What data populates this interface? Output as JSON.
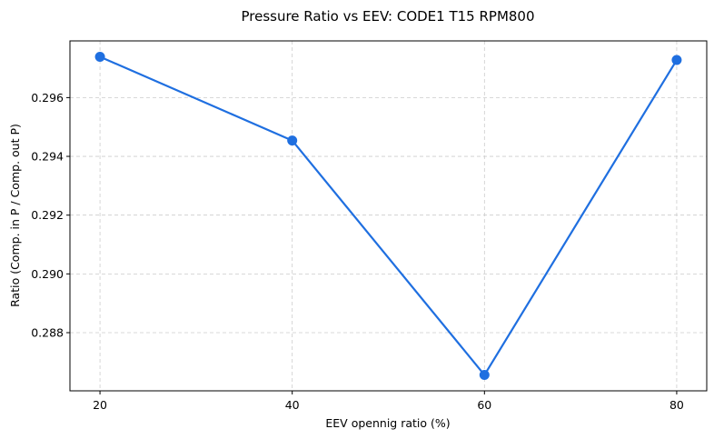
{
  "chart_data": {
    "type": "line",
    "title": "Pressure Ratio vs EEV: CODE1 T15 RPM800",
    "xlabel": "EEV opennig ratio (%)",
    "ylabel": "Ratio (Comp. in P / Comp. out P)",
    "x": [
      20,
      40,
      60,
      80
    ],
    "series": [
      {
        "values": [
          0.29739,
          0.29454,
          0.28656,
          0.29728
        ],
        "color": "#1f6fe0",
        "marker": "circle"
      }
    ],
    "xticks": [
      20,
      40,
      60,
      80
    ],
    "yticks": [
      0.288,
      0.29,
      0.292,
      0.294,
      0.296
    ],
    "ytick_labels": [
      "0.288",
      "0.290",
      "0.292",
      "0.294",
      "0.296"
    ],
    "xlim": [
      16.875,
      83.125
    ],
    "ylim": [
      0.28602,
      0.29793
    ],
    "grid": true
  }
}
